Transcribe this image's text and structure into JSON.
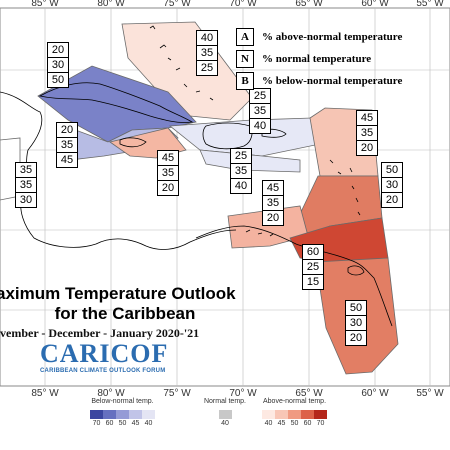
{
  "map": {
    "title_line1": "aximum Temperature Outlook",
    "title_line2": "for the Caribbean",
    "subtitle": "ovember - December - January 2020-'21",
    "longitude_labels": [
      "85° W",
      "80° W",
      "75° W",
      "70° W",
      "65° W",
      "60° W",
      "55° W"
    ],
    "legend": [
      {
        "key": "A",
        "text": "% above-normal temperature"
      },
      {
        "key": "N",
        "text": "% normal temperature"
      },
      {
        "key": "B",
        "text": "% below-normal temperature"
      }
    ],
    "regions": [
      {
        "name": "bahamas",
        "above": "40",
        "normal": "35",
        "below": "25",
        "fill": "#fbe3da"
      },
      {
        "name": "cuba",
        "above": "20",
        "normal": "30",
        "below": "50",
        "fill": "#7a82c8"
      },
      {
        "name": "cayman-jamaica",
        "above": "20",
        "normal": "35",
        "below": "45",
        "fill": "#b7bce4"
      },
      {
        "name": "belize",
        "above": "35",
        "normal": "35",
        "below": "30",
        "fill": "#ffffff"
      },
      {
        "name": "jamaica-south",
        "above": "45",
        "normal": "35",
        "below": "20",
        "fill": "#f4b7a3"
      },
      {
        "name": "hispaniola-north",
        "above": "25",
        "normal": "35",
        "below": "40",
        "fill": "#e6e8f6"
      },
      {
        "name": "hispaniola-south",
        "above": "25",
        "normal": "35",
        "below": "40",
        "fill": "#e6e8f6"
      },
      {
        "name": "northern-leewards",
        "above": "45",
        "normal": "35",
        "below": "20",
        "fill": "#f6c5b4"
      },
      {
        "name": "eastern-caribbean",
        "above": "50",
        "normal": "30",
        "below": "20",
        "fill": "#e07c62"
      },
      {
        "name": "abc-islands",
        "above": "45",
        "normal": "35",
        "below": "20",
        "fill": "#f4b3a0"
      },
      {
        "name": "trinidad",
        "above": "60",
        "normal": "25",
        "below": "15",
        "fill": "#cf4733"
      },
      {
        "name": "guianas",
        "above": "50",
        "normal": "30",
        "below": "20",
        "fill": "#e27e64"
      }
    ],
    "logo": {
      "name": "CARICOF",
      "subtitle": "CARIBBEAN CLIMATE OUTLOOK FORUM"
    },
    "colorbar": {
      "below_title": "Below-normal temp.",
      "normal_title": "Normal temp.",
      "above_title": "Above-normal temp.",
      "below_colors": [
        "#3b46a0",
        "#6670c0",
        "#959bd6",
        "#c1c4e8",
        "#e4e5f4"
      ],
      "normal_color": "#c8c8c8",
      "above_colors": [
        "#fde9e2",
        "#f8c6b6",
        "#f09a82",
        "#dd6249",
        "#b5271b"
      ],
      "below_ticks": [
        "70",
        "60",
        "50",
        "45",
        "40"
      ],
      "normal_tick": "40",
      "above_ticks": [
        "40",
        "45",
        "50",
        "60",
        "70"
      ]
    }
  }
}
